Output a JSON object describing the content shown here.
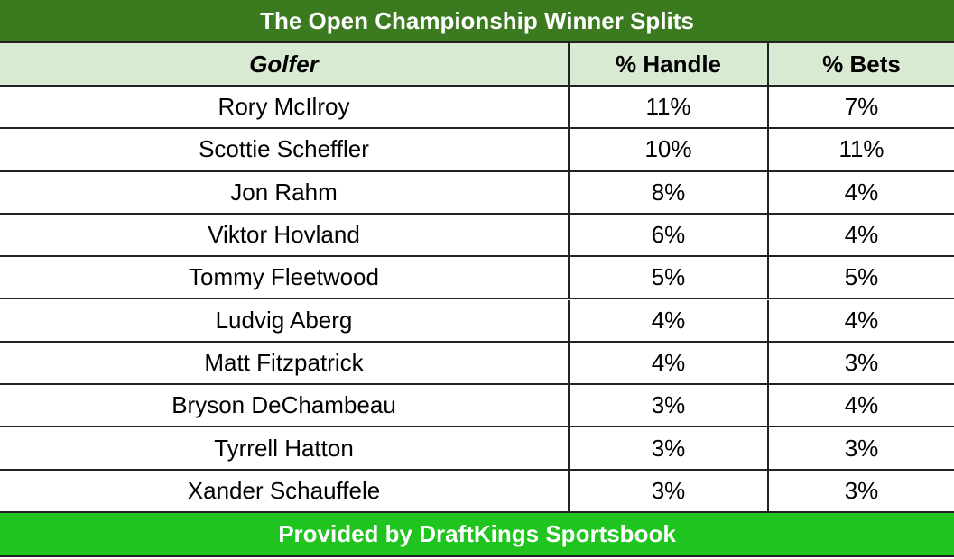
{
  "header": {
    "title": "The Open Championship Winner Splits"
  },
  "table": {
    "columns": [
      "Golfer",
      "% Handle",
      "% Bets"
    ],
    "rows": [
      [
        "Rory McIlroy",
        "11%",
        "7%"
      ],
      [
        "Scottie Scheffler",
        "10%",
        "11%"
      ],
      [
        "Jon Rahm",
        "8%",
        "4%"
      ],
      [
        "Viktor Hovland",
        "6%",
        "4%"
      ],
      [
        "Tommy Fleetwood",
        "5%",
        "5%"
      ],
      [
        "Ludvig Aberg",
        "4%",
        "4%"
      ],
      [
        "Matt Fitzpatrick",
        "4%",
        "3%"
      ],
      [
        "Bryson DeChambeau",
        "3%",
        "4%"
      ],
      [
        "Tyrrell Hatton",
        "3%",
        "3%"
      ],
      [
        "Xander Schauffele",
        "3%",
        "3%"
      ]
    ]
  },
  "footer": {
    "text": "Provided by DraftKings Sportsbook"
  }
}
